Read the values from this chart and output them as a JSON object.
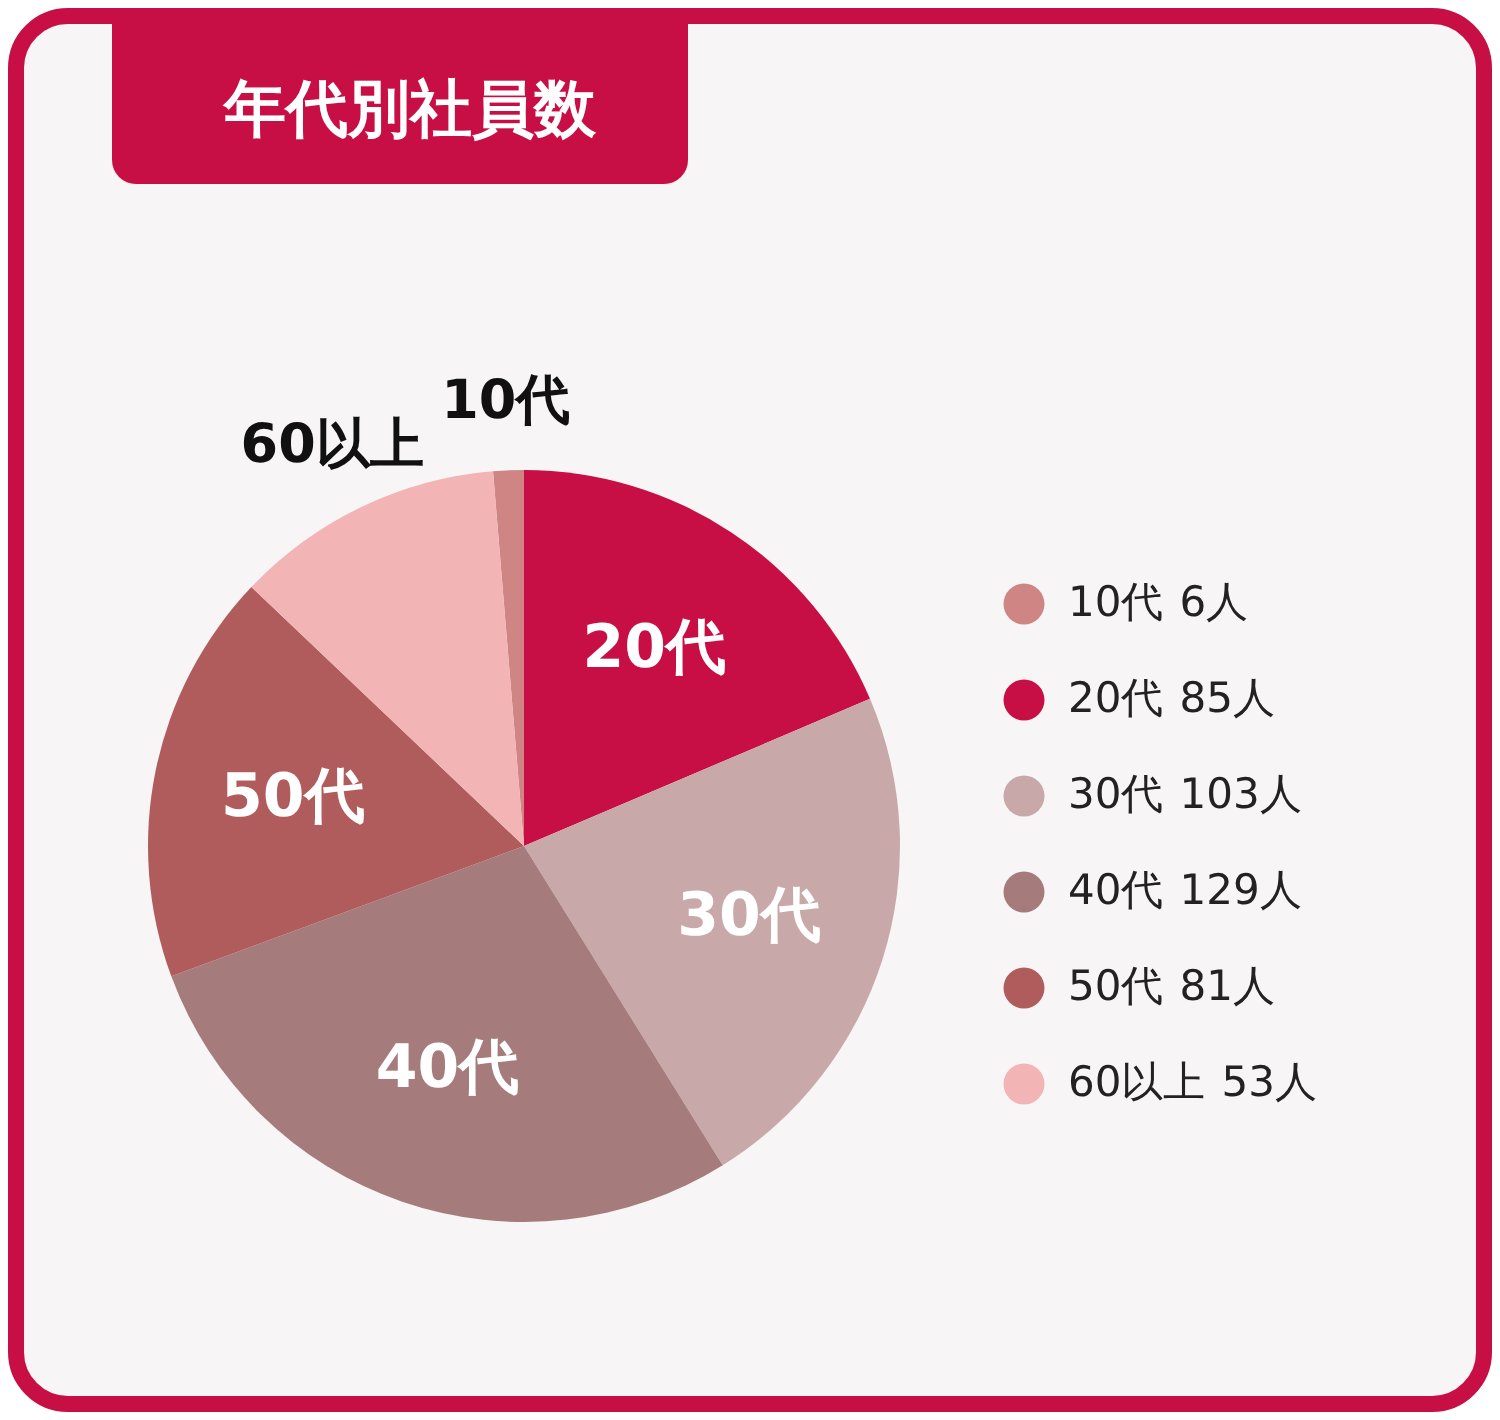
{
  "chart_data": {
    "type": "pie",
    "title": "年代別社員数",
    "categories": [
      "10代",
      "20代",
      "30代",
      "40代",
      "50代",
      "60以上"
    ],
    "values": [
      6,
      85,
      103,
      129,
      81,
      53
    ],
    "value_labels": [
      "6人",
      "85人",
      "103人",
      "129人",
      "81人",
      "53人"
    ],
    "colors": [
      "#d08585",
      "#c80f45",
      "#c8a8a8",
      "#a67b7b",
      "#b05c5c",
      "#f2b4b5"
    ],
    "legend": "right"
  }
}
